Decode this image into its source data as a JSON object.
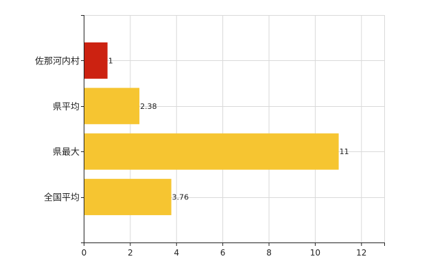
{
  "chart_data": {
    "type": "bar",
    "orientation": "horizontal",
    "categories": [
      "佐那河内村",
      "県平均",
      "県最大",
      "全国平均"
    ],
    "values": [
      1,
      2.38,
      11,
      3.76
    ],
    "value_labels": [
      "1",
      "2.38",
      "11",
      "3.76"
    ],
    "bar_colors": [
      "#cc2211",
      "#f6c531",
      "#f6c531",
      "#f6c531"
    ],
    "xlim": [
      0,
      13
    ],
    "x_ticks": [
      0,
      2,
      4,
      6,
      8,
      10,
      12
    ],
    "x_tick_labels": [
      "0",
      "2",
      "4",
      "6",
      "8",
      "10",
      "12"
    ],
    "grid": true,
    "title": "",
    "xlabel": "",
    "ylabel": ""
  },
  "colors": {
    "highlight": "#cc2211",
    "bar": "#f6c531",
    "grid": "#d9d9d9",
    "axis": "#222222"
  }
}
